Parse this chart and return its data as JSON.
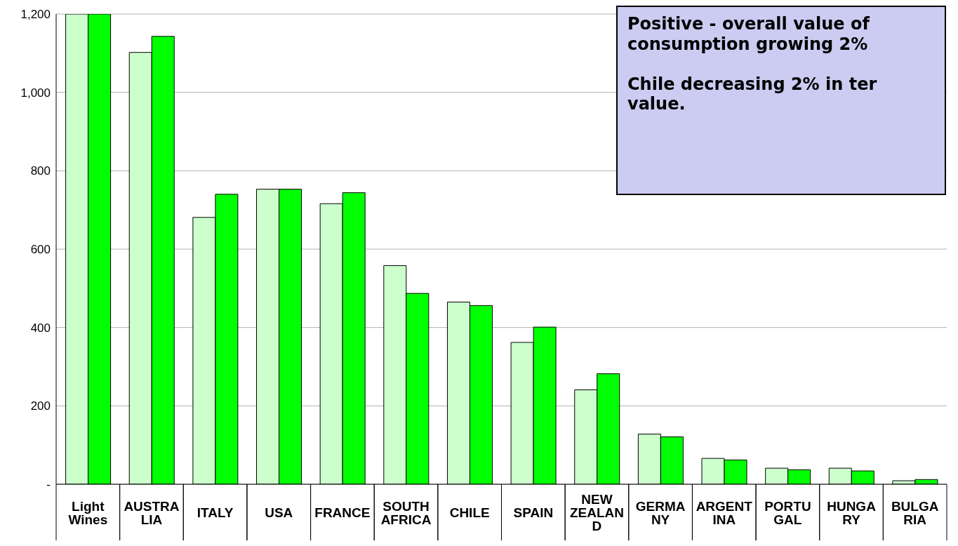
{
  "chart_data": {
    "type": "bar",
    "categories": [
      "Light\nWines",
      "AUSTRA\nLIA",
      "ITALY",
      "USA",
      "FRANCE",
      "SOUTH\nAFRICA",
      "CHILE",
      "SPAIN",
      "NEW\nZEALAN\nD",
      "GERMA\nNY",
      "ARGENT\nINA",
      "PORTU\nGAL",
      "HUNGA\nRY",
      "BULGA\nRIA"
    ],
    "series": [
      {
        "color": "#ccffcc",
        "values": [
          1200,
          1102,
          681,
          753,
          716,
          558,
          465,
          362,
          241,
          128,
          66,
          41,
          41,
          9
        ]
      },
      {
        "color": "#00ff00",
        "values": [
          1200,
          1143,
          740,
          753,
          744,
          487,
          456,
          401,
          282,
          121,
          62,
          37,
          34,
          12
        ]
      }
    ],
    "ylim": [
      0,
      1200
    ],
    "yticks": [
      {
        "value": 0,
        "label": "-"
      },
      200,
      400,
      600,
      800,
      {
        "value": 1000,
        "label": "1,000"
      },
      {
        "value": 1200,
        "label": "1,200"
      }
    ],
    "grid": "y",
    "legend": false,
    "annotations": [
      "Positive  - overall value of consumption growing 2%",
      "Chile decreasing 2% in ter value."
    ]
  }
}
